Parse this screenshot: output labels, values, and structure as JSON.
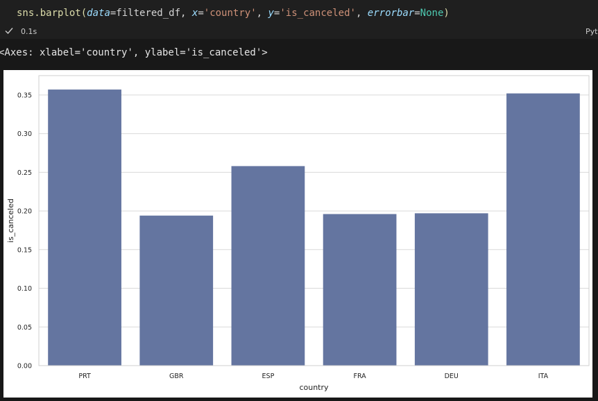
{
  "cell": {
    "code": {
      "fn": "sns.barplot(",
      "p1": "data",
      "eq1": "=filtered_df, ",
      "p2": "x",
      "eq2": "=",
      "s1": "'country'",
      "c1": ", ",
      "p3": "y",
      "eq3": "=",
      "s2": "'is_canceled'",
      "c2": ", ",
      "p4": "errorbar",
      "eq4": "=",
      "kw": "None",
      "close": ")"
    },
    "exec_time": "0.1s",
    "language": "Python"
  },
  "output": {
    "repr": "<Axes: xlabel='country', ylabel='is_canceled'>"
  },
  "colors": {
    "bar": "#6475a0",
    "grid": "#d9d9d9"
  },
  "chart_data": {
    "type": "bar",
    "categories": [
      "PRT",
      "GBR",
      "ESP",
      "FRA",
      "DEU",
      "ITA"
    ],
    "values": [
      0.357,
      0.194,
      0.258,
      0.196,
      0.197,
      0.352
    ],
    "xlabel": "country",
    "ylabel": "is_canceled",
    "ylim": [
      0,
      0.375
    ],
    "yticks": [
      "0.00",
      "0.05",
      "0.10",
      "0.15",
      "0.20",
      "0.25",
      "0.30",
      "0.35"
    ],
    "ytick_values": [
      0,
      0.05,
      0.1,
      0.15,
      0.2,
      0.25,
      0.3,
      0.35
    ],
    "grid": true
  }
}
